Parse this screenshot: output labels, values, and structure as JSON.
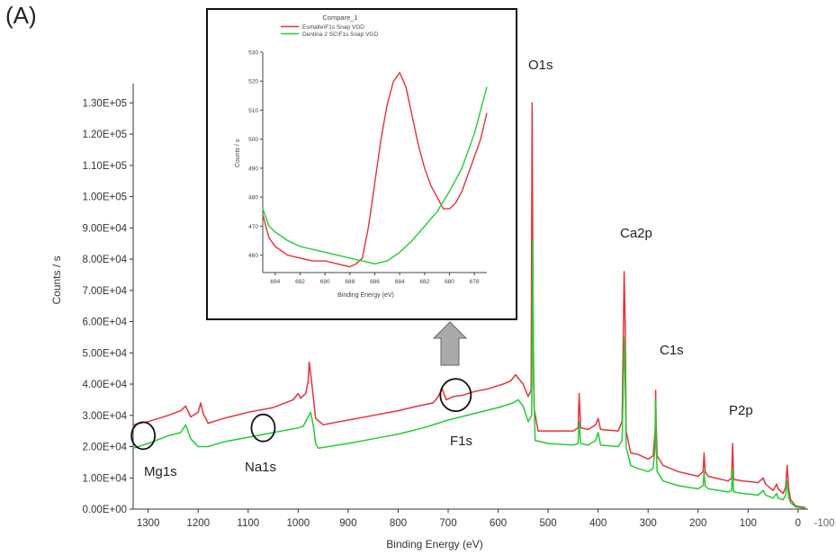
{
  "panel_label": "(A)",
  "colors": {
    "series1": "#e8313a",
    "series2": "#22cc33",
    "axis": "#333333",
    "grid_text": "#333333"
  },
  "chart_data": [
    {
      "type": "line",
      "title": "",
      "xlabel": "Binding Energy (eV)",
      "ylabel": "Counts / s",
      "xlim": [
        1330,
        -20
      ],
      "ylim": [
        0,
        135000
      ],
      "x_reversed": true,
      "x_ticks": [
        1300,
        1200,
        1100,
        1000,
        900,
        800,
        700,
        600,
        500,
        400,
        300,
        200,
        100,
        0
      ],
      "x_tick_labels": [
        "1300",
        "1200",
        "1100",
        "1000",
        "900",
        "800",
        "700",
        "600",
        "500",
        "400",
        "300",
        "200",
        "100",
        "0"
      ],
      "x_edge_label": "-100",
      "y_ticks": [
        0,
        10000,
        20000,
        30000,
        40000,
        50000,
        60000,
        70000,
        80000,
        90000,
        100000,
        110000,
        120000,
        130000
      ],
      "y_tick_labels": [
        "0.00E+00",
        "1.00E+04",
        "2.00E+04",
        "3.00E+04",
        "4.00E+04",
        "5.00E+04",
        "6.00E+04",
        "7.00E+04",
        "8.00E+04",
        "9.00E+04",
        "1.00E+05",
        "1.10E+05",
        "1.20E+05",
        "1.30E+05"
      ],
      "series": [
        {
          "color": "#e8313a",
          "points": [
            [
              1330,
              27000
            ],
            [
              1300,
              28000
            ],
            [
              1260,
              30000
            ],
            [
              1235,
              31500
            ],
            [
              1225,
              33000
            ],
            [
              1215,
              29500
            ],
            [
              1200,
              31000
            ],
            [
              1195,
              34000
            ],
            [
              1190,
              30500
            ],
            [
              1180,
              27500
            ],
            [
              1150,
              29000
            ],
            [
              1100,
              31000
            ],
            [
              1050,
              32500
            ],
            [
              1010,
              35000
            ],
            [
              1000,
              37000
            ],
            [
              995,
              35500
            ],
            [
              985,
              37000
            ],
            [
              980,
              41000
            ],
            [
              978,
              47000
            ],
            [
              974,
              42000
            ],
            [
              965,
              29000
            ],
            [
              950,
              27000
            ],
            [
              900,
              28500
            ],
            [
              850,
              30000
            ],
            [
              800,
              31500
            ],
            [
              760,
              33000
            ],
            [
              730,
              34000
            ],
            [
              720,
              36000
            ],
            [
              712,
              38500
            ],
            [
              704,
              35000
            ],
            [
              690,
              36000
            ],
            [
              670,
              36500
            ],
            [
              650,
              37500
            ],
            [
              620,
              38500
            ],
            [
              590,
              40000
            ],
            [
              575,
              41000
            ],
            [
              565,
              43000
            ],
            [
              550,
              40000
            ],
            [
              540,
              36000
            ],
            [
              534,
              38000
            ],
            [
              532,
              130000
            ],
            [
              530,
              60000
            ],
            [
              528,
              32000
            ],
            [
              520,
              25000
            ],
            [
              500,
              25000
            ],
            [
              450,
              25000
            ],
            [
              440,
              26000
            ],
            [
              438,
              37000
            ],
            [
              435,
              26000
            ],
            [
              420,
              25500
            ],
            [
              405,
              27000
            ],
            [
              400,
              29000
            ],
            [
              395,
              25500
            ],
            [
              360,
              25000
            ],
            [
              352,
              28000
            ],
            [
              350,
              51000
            ],
            [
              348,
              76000
            ],
            [
              346,
              60000
            ],
            [
              344,
              25000
            ],
            [
              335,
              18000
            ],
            [
              320,
              17500
            ],
            [
              300,
              16000
            ],
            [
              290,
              17000
            ],
            [
              286,
              25000
            ],
            [
              285,
              38000
            ],
            [
              284,
              28000
            ],
            [
              282,
              17000
            ],
            [
              270,
              14000
            ],
            [
              240,
              12000
            ],
            [
              200,
              10500
            ],
            [
              190,
              12000
            ],
            [
              188,
              18000
            ],
            [
              186,
              12000
            ],
            [
              180,
              10500
            ],
            [
              140,
              9000
            ],
            [
              133,
              10000
            ],
            [
              131,
              21000
            ],
            [
              129,
              9500
            ],
            [
              110,
              9000
            ],
            [
              80,
              8500
            ],
            [
              70,
              10000
            ],
            [
              65,
              8000
            ],
            [
              50,
              6000
            ],
            [
              43,
              8000
            ],
            [
              40,
              6500
            ],
            [
              30,
              5000
            ],
            [
              25,
              7000
            ],
            [
              22,
              14000
            ],
            [
              19,
              7000
            ],
            [
              15,
              3000
            ],
            [
              5,
              1000
            ],
            [
              -15,
              500
            ]
          ]
        },
        {
          "color": "#22cc33",
          "points": [
            [
              1330,
              19500
            ],
            [
              1300,
              21000
            ],
            [
              1260,
              23500
            ],
            [
              1235,
              24500
            ],
            [
              1225,
              27000
            ],
            [
              1215,
              22500
            ],
            [
              1200,
              20000
            ],
            [
              1180,
              20000
            ],
            [
              1150,
              21500
            ],
            [
              1100,
              23000
            ],
            [
              1050,
              24500
            ],
            [
              1000,
              26000
            ],
            [
              990,
              26500
            ],
            [
              980,
              29500
            ],
            [
              975,
              31000
            ],
            [
              970,
              27000
            ],
            [
              965,
              21000
            ],
            [
              960,
              19500
            ],
            [
              900,
              21000
            ],
            [
              850,
              22500
            ],
            [
              800,
              24000
            ],
            [
              750,
              26000
            ],
            [
              700,
              28500
            ],
            [
              650,
              30500
            ],
            [
              600,
              32500
            ],
            [
              570,
              34000
            ],
            [
              560,
              35000
            ],
            [
              550,
              33000
            ],
            [
              540,
              28000
            ],
            [
              533,
              30000
            ],
            [
              531,
              86000
            ],
            [
              529,
              40000
            ],
            [
              526,
              22000
            ],
            [
              500,
              21000
            ],
            [
              450,
              20500
            ],
            [
              440,
              21000
            ],
            [
              438,
              28000
            ],
            [
              435,
              21000
            ],
            [
              420,
              20500
            ],
            [
              405,
              22000
            ],
            [
              400,
              24500
            ],
            [
              395,
              20500
            ],
            [
              360,
              20000
            ],
            [
              352,
              22000
            ],
            [
              350,
              36000
            ],
            [
              348,
              55000
            ],
            [
              346,
              42000
            ],
            [
              344,
              20000
            ],
            [
              335,
              14000
            ],
            [
              320,
              13000
            ],
            [
              300,
              12000
            ],
            [
              290,
              13000
            ],
            [
              286,
              20000
            ],
            [
              285,
              35000
            ],
            [
              284,
              22000
            ],
            [
              282,
              12000
            ],
            [
              270,
              9000
            ],
            [
              240,
              7500
            ],
            [
              200,
              6500
            ],
            [
              190,
              7500
            ],
            [
              188,
              12000
            ],
            [
              186,
              7500
            ],
            [
              180,
              6500
            ],
            [
              140,
              5500
            ],
            [
              133,
              6000
            ],
            [
              131,
              13000
            ],
            [
              129,
              5500
            ],
            [
              110,
              5000
            ],
            [
              80,
              4500
            ],
            [
              70,
              6000
            ],
            [
              65,
              4500
            ],
            [
              50,
              3500
            ],
            [
              43,
              5000
            ],
            [
              40,
              3500
            ],
            [
              30,
              3000
            ],
            [
              25,
              4500
            ],
            [
              22,
              9000
            ],
            [
              19,
              4000
            ],
            [
              15,
              2000
            ],
            [
              5,
              700
            ],
            [
              -15,
              300
            ]
          ]
        }
      ],
      "peak_labels": [
        "O1s",
        "Ca2p",
        "C1s",
        "P2p",
        "F1s",
        "Mg1s",
        "Na1s"
      ],
      "peak_markers": [
        {
          "label": "Mg1s",
          "x": 1310,
          "y": 23500
        },
        {
          "label": "Na1s",
          "x": 1070,
          "y": 26000
        },
        {
          "label": "F1s",
          "x": 685,
          "y": 36500
        }
      ]
    },
    {
      "type": "line",
      "title": "Compare_1",
      "xlabel": "Binding Energy (eV)",
      "ylabel": "Counts / s",
      "xlim": [
        695,
        677
      ],
      "ylim": [
        454,
        530
      ],
      "x_reversed": true,
      "x_ticks": [
        694,
        692,
        690,
        688,
        686,
        684,
        682,
        680,
        678
      ],
      "x_tick_labels": [
        "694",
        "692",
        "690",
        "688",
        "686",
        "684",
        "682",
        "680",
        "678"
      ],
      "y_ticks": [
        460,
        470,
        480,
        490,
        500,
        510,
        520,
        530
      ],
      "y_tick_labels": [
        "460",
        "470",
        "480",
        "490",
        "500",
        "510",
        "520",
        "530"
      ],
      "series": [
        {
          "name": "Esmalte\\F1s Snap VGD",
          "color": "#e8313a",
          "points": [
            [
              695,
              474
            ],
            [
              694.5,
              466
            ],
            [
              694,
              463
            ],
            [
              693,
              460
            ],
            [
              692,
              459
            ],
            [
              691,
              458
            ],
            [
              690,
              458
            ],
            [
              689,
              457
            ],
            [
              688,
              456
            ],
            [
              687.5,
              457
            ],
            [
              687,
              459
            ],
            [
              686.5,
              470
            ],
            [
              686,
              485
            ],
            [
              685.5,
              500
            ],
            [
              685,
              512
            ],
            [
              684.5,
              520
            ],
            [
              684,
              523
            ],
            [
              683.5,
              518
            ],
            [
              683,
              508
            ],
            [
              682.5,
              498
            ],
            [
              682,
              490
            ],
            [
              681.5,
              484
            ],
            [
              681,
              480
            ],
            [
              680.5,
              476
            ],
            [
              680,
              476
            ],
            [
              679.5,
              478
            ],
            [
              679,
              482
            ],
            [
              678.5,
              488
            ],
            [
              678,
              494
            ],
            [
              677.5,
              500
            ],
            [
              677,
              509
            ]
          ]
        },
        {
          "name": "Dentina 2 SC\\F1s Snap VGD",
          "color": "#22cc33",
          "points": [
            [
              695,
              476
            ],
            [
              694.5,
              470
            ],
            [
              694,
              468
            ],
            [
              693,
              465
            ],
            [
              692,
              463
            ],
            [
              691,
              462
            ],
            [
              690,
              461
            ],
            [
              689,
              460
            ],
            [
              688,
              459
            ],
            [
              687,
              458
            ],
            [
              686,
              457
            ],
            [
              685,
              458
            ],
            [
              684,
              461
            ],
            [
              683,
              465
            ],
            [
              682,
              470
            ],
            [
              681,
              475
            ],
            [
              680,
              482
            ],
            [
              679,
              490
            ],
            [
              678.5,
              496
            ],
            [
              678,
              502
            ],
            [
              677.5,
              510
            ],
            [
              677,
              518
            ]
          ]
        }
      ]
    }
  ]
}
